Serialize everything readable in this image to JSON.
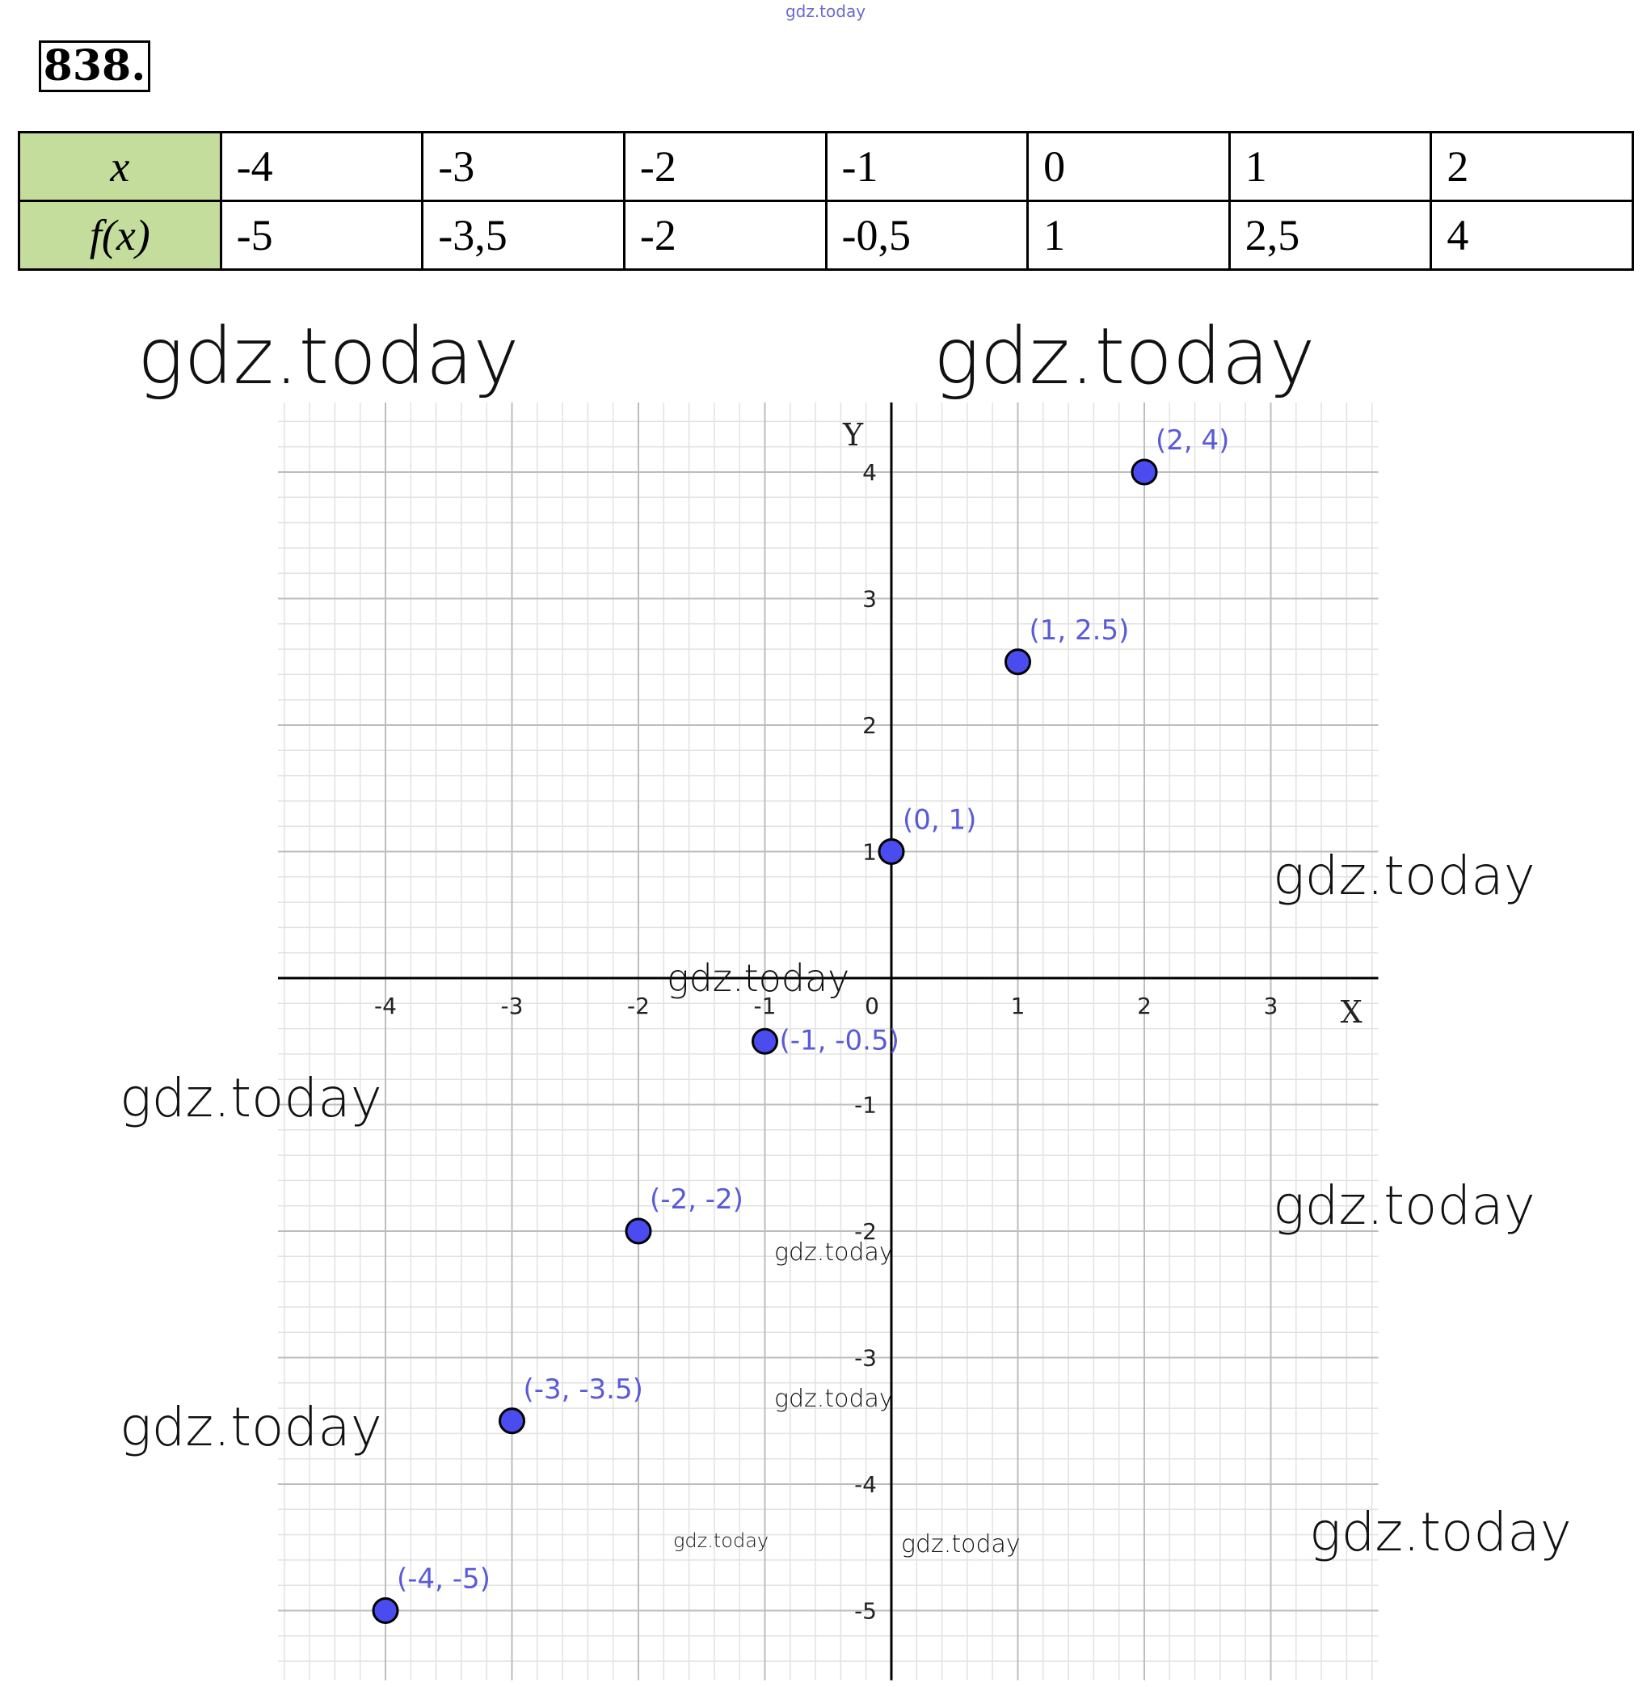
{
  "watermark_top": "gdz.today",
  "problem_number": "838.",
  "table": {
    "row_x_label": "x",
    "row_f_label": "f(x)",
    "x_values": [
      "-4",
      "-3",
      "-2",
      "-1",
      "0",
      "1",
      "2"
    ],
    "f_values": [
      "-5",
      "-3,5",
      "-2",
      "-0,5",
      "1",
      "2,5",
      "4"
    ]
  },
  "watermarks": [
    "gdz.today",
    "gdz.today",
    "gdz.today",
    "gdz.today",
    "gdz.today",
    "gdz.today",
    "gdz.today",
    "gdz.today",
    "gdz.today",
    "gdz.today",
    "gdz.today",
    "gdz.today"
  ],
  "chart_data": {
    "type": "scatter",
    "xlabel": "X",
    "ylabel": "Y",
    "xlim": [
      -4.85,
      3.85
    ],
    "ylim": [
      -5.55,
      4.55
    ],
    "x_ticks": [
      -4,
      -3,
      -2,
      -1,
      0,
      1,
      2,
      3
    ],
    "y_ticks": [
      -5,
      -4,
      -3,
      -2,
      -1,
      1,
      2,
      3,
      4
    ],
    "grid": true,
    "minor_grid_step": 0.2,
    "point_color": "#4a4cf0",
    "label_color": "#5a5ad8",
    "points": [
      {
        "x": -4,
        "y": -5,
        "label": "(-4, -5)"
      },
      {
        "x": -3,
        "y": -3.5,
        "label": "(-3, -3.5)"
      },
      {
        "x": -2,
        "y": -2,
        "label": "(-2, -2)"
      },
      {
        "x": -1,
        "y": -0.5,
        "label": "(-1, -0.5)"
      },
      {
        "x": 0,
        "y": 1,
        "label": "(0, 1)"
      },
      {
        "x": 1,
        "y": 2.5,
        "label": "(1, 2.5)"
      },
      {
        "x": 2,
        "y": 4,
        "label": "(2, 4)"
      }
    ]
  }
}
